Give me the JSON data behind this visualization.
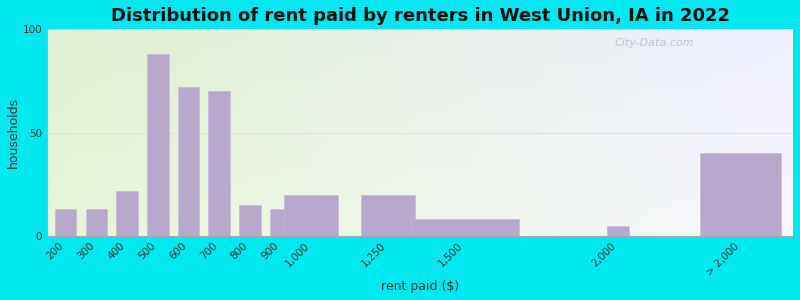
{
  "title": "Distribution of rent paid by renters in West Union, IA in 2022",
  "xlabel": "rent paid ($)",
  "ylabel": "households",
  "bar_positions": [
    200,
    300,
    400,
    500,
    600,
    700,
    800,
    900,
    1000,
    1250,
    1500,
    2000,
    2400
  ],
  "bar_widths": [
    80,
    80,
    80,
    80,
    80,
    80,
    80,
    80,
    200,
    200,
    400,
    80,
    300
  ],
  "values": [
    13,
    13,
    22,
    88,
    72,
    70,
    15,
    13,
    20,
    20,
    8,
    5,
    40
  ],
  "tick_positions": [
    200,
    300,
    400,
    500,
    600,
    700,
    800,
    900,
    1000,
    1250,
    1500,
    2000,
    2400
  ],
  "tick_labels": [
    "200",
    "300",
    "400",
    "500",
    "600",
    "700",
    "800",
    "900",
    "1,000",
    "1,250",
    "1,500",
    "2,000",
    "> 2,000"
  ],
  "bar_color": "#b8a8cc",
  "bar_edge_color": "#c8b8d8",
  "ylim": [
    0,
    100
  ],
  "yticks": [
    0,
    50,
    100
  ],
  "background_outer": "#00e8f0",
  "background_inner_topleft": "#e8f5d8",
  "background_inner_bottomright": "#eeeeff",
  "title_fontsize": 13,
  "axis_label_fontsize": 9,
  "tick_fontsize": 7.5,
  "watermark": "City-Data.com"
}
